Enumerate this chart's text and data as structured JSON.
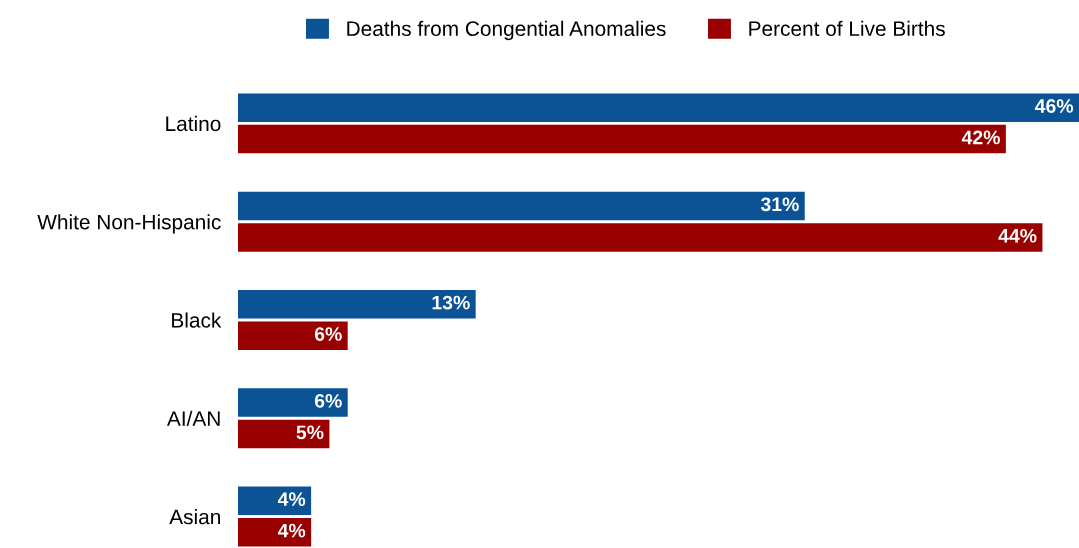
{
  "chart_data": {
    "type": "bar",
    "orientation": "horizontal",
    "legend": "top",
    "grid": false,
    "categories": [
      "Latino",
      "White Non-Hispanic",
      "Black",
      "AI/AN",
      "Asian"
    ],
    "series": [
      {
        "name": "Deaths from Congential Anomalies",
        "color": "#0b5394",
        "values": [
          46,
          31,
          13,
          6,
          4
        ],
        "value_labels": [
          "46%",
          "31%",
          "13%",
          "6%",
          "4%"
        ]
      },
      {
        "name": "Percent of Live Births",
        "color": "#990000",
        "values": [
          42,
          44,
          6,
          5,
          4
        ],
        "value_labels": [
          "42%",
          "44%",
          "6%",
          "5%",
          "4%"
        ]
      }
    ]
  }
}
